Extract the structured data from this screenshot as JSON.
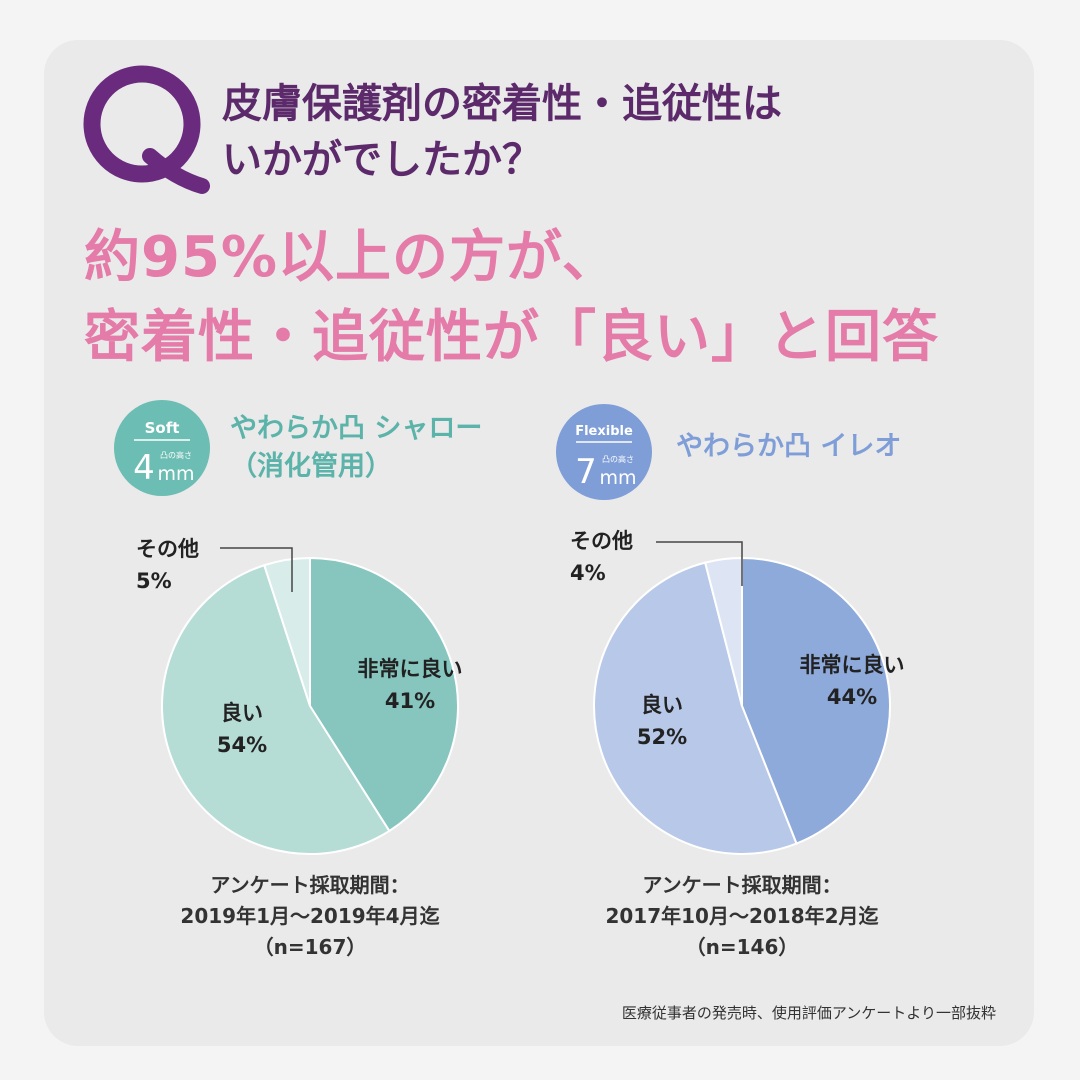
{
  "question": {
    "mark": "Q",
    "line1": "皮膚保護剤の密着性・追従性は",
    "line2": "いかがでしたか？"
  },
  "headline": {
    "line1": "約95%以上の方が、",
    "line2": "密着性・追従性が「良い」と回答"
  },
  "colors": {
    "question": "#5c2a6b",
    "headline": "#e47ba8",
    "soft_accent": "#6cbdb3",
    "flexible_accent": "#7f9ed8"
  },
  "chart_data": [
    {
      "type": "pie",
      "product": {
        "badge_type": "Soft",
        "badge_number": "4",
        "badge_small": "凸の高さ",
        "badge_unit": "mm",
        "name_line1": "やわらか凸 シャロー",
        "name_line2": "（消化管用）"
      },
      "slices": [
        {
          "label": "非常に良い",
          "value": 41,
          "display": "41%",
          "color": "#86c6bf"
        },
        {
          "label": "良い",
          "value": 54,
          "display": "54%",
          "color": "#b6dcd6"
        },
        {
          "label": "その他",
          "value": 5,
          "display": "5%",
          "color": "#d8ecea"
        }
      ],
      "period": {
        "label": "アンケート採取期間：",
        "range": "2019年1月～2019年4月迄",
        "n": "（n=167）"
      }
    },
    {
      "type": "pie",
      "product": {
        "badge_type": "Flexible",
        "badge_number": "7",
        "badge_small": "凸の高さ",
        "badge_unit": "mm",
        "name_line1": "やわらか凸 イレオ",
        "name_line2": ""
      },
      "slices": [
        {
          "label": "非常に良い",
          "value": 44,
          "display": "44%",
          "color": "#8eaadb"
        },
        {
          "label": "良い",
          "value": 52,
          "display": "52%",
          "color": "#b8c8e8"
        },
        {
          "label": "その他",
          "value": 4,
          "display": "4%",
          "color": "#dde5f4"
        }
      ],
      "period": {
        "label": "アンケート採取期間：",
        "range": "2017年10月～2018年2月迄",
        "n": "（n=146）"
      }
    }
  ],
  "source": "医療従事者の発売時、使用評価アンケートより一部抜粋"
}
